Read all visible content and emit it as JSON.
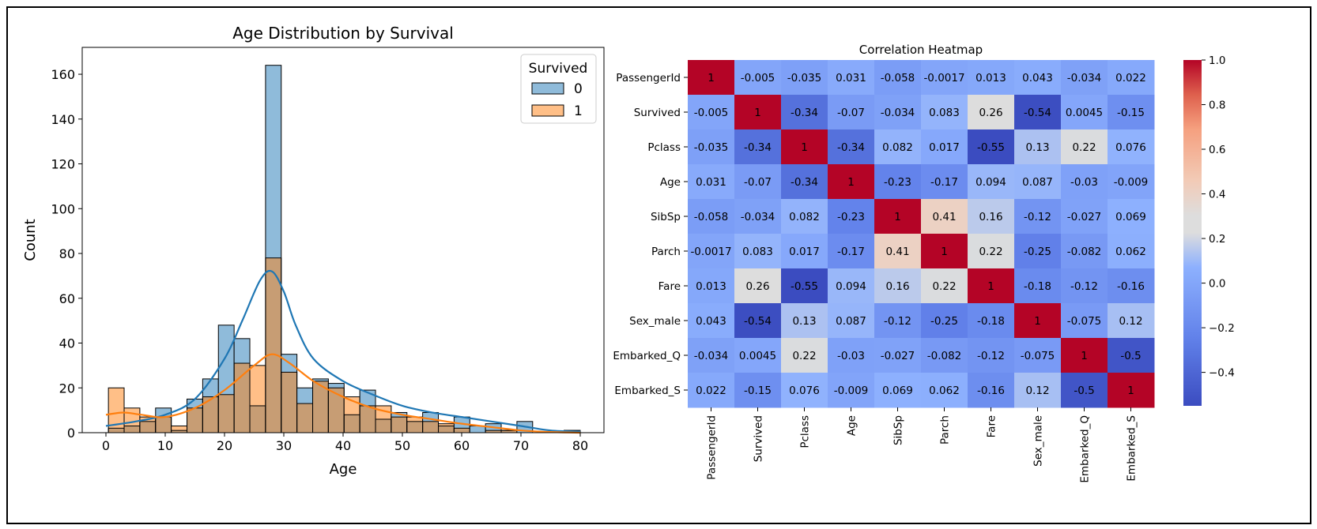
{
  "chart_data": [
    {
      "type": "histogram",
      "title": "Age Distribution by Survival",
      "xlabel": "Age",
      "ylabel": "Count",
      "xlim": [
        -4,
        84
      ],
      "ylim": [
        0,
        172
      ],
      "xticks": [
        0,
        10,
        20,
        30,
        40,
        50,
        60,
        70,
        80
      ],
      "yticks": [
        0,
        20,
        40,
        60,
        80,
        100,
        120,
        140,
        160
      ],
      "bin_edges": [
        0.42,
        3.07,
        5.72,
        8.37,
        11.02,
        13.67,
        16.32,
        18.97,
        21.62,
        24.27,
        26.92,
        29.57,
        32.22,
        34.87,
        37.52,
        40.17,
        42.82,
        45.47,
        48.12,
        50.77,
        53.42,
        56.07,
        58.72,
        61.37,
        64.02,
        66.67,
        69.32,
        71.97,
        74.62,
        77.27,
        80.0
      ],
      "legend": {
        "title": "Survived",
        "placement": "top-right"
      },
      "grid": false,
      "series": [
        {
          "name": "0",
          "color": "#1f77b4",
          "counts": [
            2,
            3,
            5,
            11,
            1,
            15,
            24,
            48,
            42,
            12,
            164,
            35,
            20,
            24,
            22,
            8,
            19,
            6,
            9,
            5,
            9,
            3,
            7,
            3,
            4,
            1,
            5,
            0,
            0,
            1
          ],
          "kde": [
            [
              0,
              3
            ],
            [
              5,
              5
            ],
            [
              10,
              8
            ],
            [
              15,
              15
            ],
            [
              20,
              33
            ],
            [
              23,
              50
            ],
            [
              26,
              68
            ],
            [
              28,
              72
            ],
            [
              30,
              63
            ],
            [
              32,
              48
            ],
            [
              35,
              33
            ],
            [
              40,
              23
            ],
            [
              45,
              17
            ],
            [
              50,
              12
            ],
            [
              55,
              9
            ],
            [
              60,
              7
            ],
            [
              65,
              5
            ],
            [
              70,
              3
            ],
            [
              75,
              1
            ],
            [
              80,
              0.5
            ]
          ]
        },
        {
          "name": "1",
          "color": "#ff7f0e",
          "counts": [
            20,
            11,
            7,
            7,
            3,
            11,
            16,
            17,
            31,
            30,
            78,
            27,
            13,
            23,
            20,
            16,
            12,
            12,
            7,
            7,
            5,
            4,
            2,
            0,
            1,
            1,
            0,
            0,
            0,
            1
          ],
          "kde": [
            [
              0,
              8
            ],
            [
              3,
              9
            ],
            [
              6,
              8
            ],
            [
              10,
              7
            ],
            [
              15,
              11
            ],
            [
              20,
              19
            ],
            [
              25,
              30
            ],
            [
              28,
              35
            ],
            [
              31,
              31
            ],
            [
              35,
              23
            ],
            [
              40,
              16
            ],
            [
              45,
              11
            ],
            [
              50,
              8
            ],
            [
              55,
              6
            ],
            [
              60,
              4
            ],
            [
              65,
              2.5
            ],
            [
              70,
              1
            ],
            [
              75,
              0.3
            ],
            [
              80,
              0
            ]
          ]
        }
      ]
    },
    {
      "type": "heatmap",
      "title": "Correlation Heatmap",
      "rows": [
        "PassengerId",
        "Survived",
        "Pclass",
        "Age",
        "SibSp",
        "Parch",
        "Fare",
        "Sex_male",
        "Embarked_Q",
        "Embarked_S"
      ],
      "columns": [
        "PassengerId",
        "Survived",
        "Pclass",
        "Age",
        "SibSp",
        "Parch",
        "Fare",
        "Sex_male",
        "Embarked_Q",
        "Embarked_S"
      ],
      "values": [
        [
          1,
          -0.005,
          -0.035,
          0.031,
          -0.058,
          -0.0017,
          0.013,
          0.043,
          -0.034,
          0.022
        ],
        [
          -0.005,
          1,
          -0.34,
          -0.07,
          -0.034,
          0.083,
          0.26,
          -0.54,
          0.0045,
          -0.15
        ],
        [
          -0.035,
          -0.34,
          1,
          -0.34,
          0.082,
          0.017,
          -0.55,
          0.13,
          0.22,
          0.076
        ],
        [
          0.031,
          -0.07,
          -0.34,
          1,
          -0.23,
          -0.17,
          0.094,
          0.087,
          -0.03,
          -0.009
        ],
        [
          -0.058,
          -0.034,
          0.082,
          -0.23,
          1,
          0.41,
          0.16,
          -0.12,
          -0.027,
          0.069
        ],
        [
          -0.0017,
          0.083,
          0.017,
          -0.17,
          0.41,
          1,
          0.22,
          -0.25,
          -0.082,
          0.062
        ],
        [
          0.013,
          0.26,
          -0.55,
          0.094,
          0.16,
          0.22,
          1,
          -0.18,
          -0.12,
          -0.16
        ],
        [
          0.043,
          -0.54,
          0.13,
          0.087,
          -0.12,
          -0.25,
          -0.18,
          1,
          -0.075,
          0.12
        ],
        [
          -0.034,
          0.0045,
          0.22,
          -0.03,
          -0.027,
          -0.082,
          -0.12,
          -0.075,
          1,
          -0.5
        ],
        [
          0.022,
          -0.15,
          0.076,
          -0.009,
          0.069,
          0.062,
          -0.16,
          0.12,
          -0.5,
          1
        ]
      ],
      "colormap": "coolwarm",
      "vmin": -0.55,
      "vmax": 1.0,
      "colorbar_ticks": [
        "1.0",
        "0.8",
        "0.6",
        "0.4",
        "0.2",
        "0.0",
        "−0.2",
        "−0.4"
      ]
    }
  ]
}
